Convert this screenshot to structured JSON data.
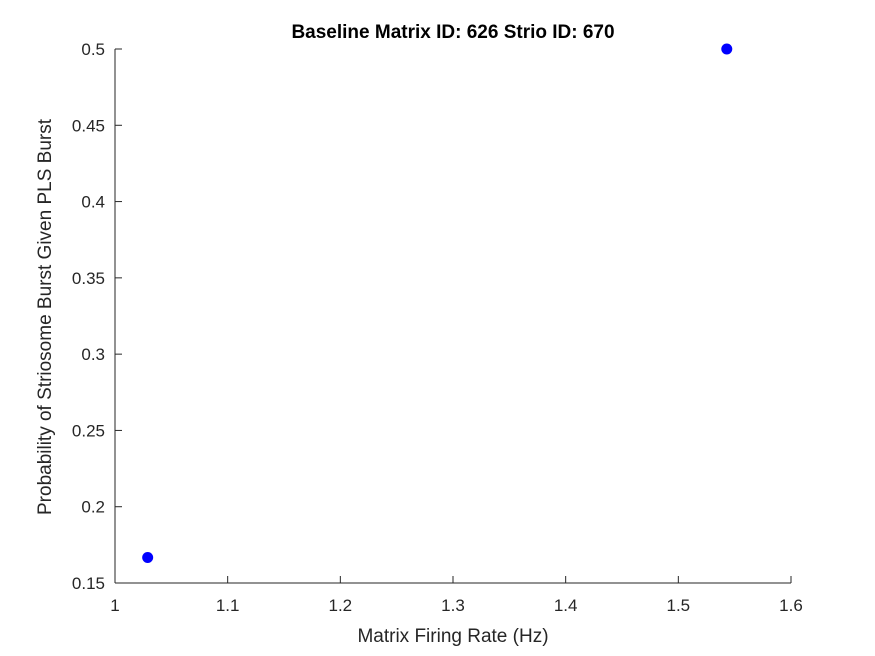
{
  "chart_data": {
    "type": "scatter",
    "title": "Baseline Matrix ID: 626 Strio ID: 670",
    "xlabel": "Matrix Firing Rate (Hz)",
    "ylabel": "Probability of Striosome Burst Given PLS Burst",
    "xlim": [
      1,
      1.6
    ],
    "ylim": [
      0.15,
      0.5
    ],
    "xticks": [
      1,
      1.1,
      1.2,
      1.3,
      1.4,
      1.5,
      1.6
    ],
    "xtick_labels": [
      "1",
      "1.1",
      "1.2",
      "1.3",
      "1.4",
      "1.5",
      "1.6"
    ],
    "yticks": [
      0.15,
      0.2,
      0.25,
      0.3,
      0.35,
      0.4,
      0.45,
      0.5
    ],
    "ytick_labels": [
      "0.15",
      "0.2",
      "0.25",
      "0.3",
      "0.35",
      "0.4",
      "0.45",
      "0.5"
    ],
    "grid": false,
    "series": [
      {
        "color": "#0000ff",
        "points": [
          {
            "x": 1.029,
            "y": 0.1667
          },
          {
            "x": 1.543,
            "y": 0.5
          }
        ]
      }
    ]
  }
}
